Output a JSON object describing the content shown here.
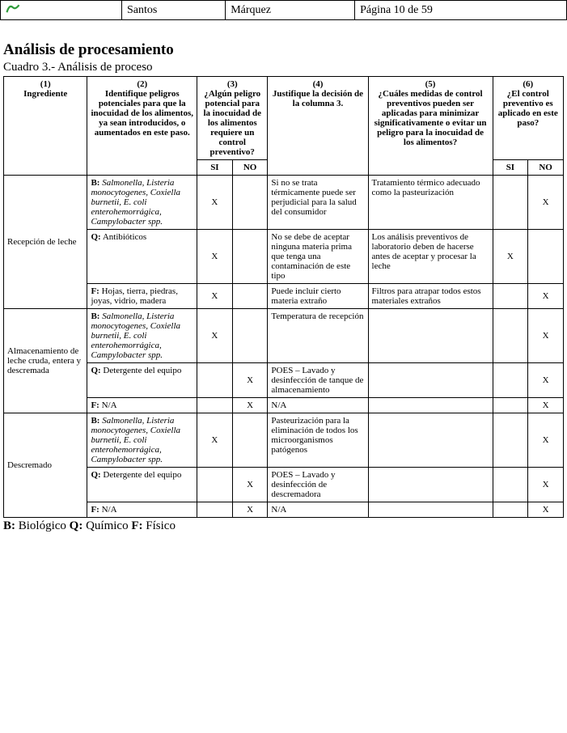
{
  "topbar": {
    "name1": "Santos",
    "name2": "Márquez",
    "page": "Página 10 de 59"
  },
  "section": {
    "title": "Análisis de procesamiento",
    "subtitle": "Cuadro 3.- Análisis de proceso"
  },
  "headers": {
    "c1_num": "(1)",
    "c1": "Ingrediente",
    "c2_num": "(2)",
    "c2": "Identifique peligros potenciales para que la inocuidad de los alimentos, ya sean introducidos, o aumentados en este paso.",
    "c3_num": "(3)",
    "c3": "¿Algún peligro potencial para la inocuidad de los alimentos requiere un control preventivo?",
    "c4_num": "(4)",
    "c4": "Justifique la decisión de la columna 3.",
    "c5_num": "(5)",
    "c5": "¿Cuáles medidas de control preventivos pueden ser aplicadas para minimizar significativamente o evitar un peligro para la inocuidad de los alimentos?",
    "c6_num": "(6)",
    "c6": "¿El control preventivo es aplicado en este paso?",
    "si": "SI",
    "no": "NO"
  },
  "rows": [
    {
      "ingredient": "Recepción de leche",
      "items": [
        {
          "hazard_prefix": "B:",
          "hazard_body": "Salmonella, Listeria monocytogenes, Coxiella burnetii, E. coli enterohemorrágica, Campylobacter spp.",
          "si3": "X",
          "no3": "",
          "just": "Si no se trata térmicamente puede ser perjudicial para la salud del consumidor",
          "meas": "Tratamiento térmico adecuado como la pasteurización",
          "si6": "",
          "no6": "X"
        },
        {
          "hazard_prefix": "Q:",
          "hazard_body": "Antibióticos",
          "si3": "X",
          "no3": "",
          "just": "No se debe de aceptar ninguna materia prima que tenga una contaminación de este tipo",
          "meas": "Los análisis preventivos de laboratorio deben de hacerse antes de aceptar y procesar la leche",
          "si6": "X",
          "no6": ""
        },
        {
          "hazard_prefix": "F:",
          "hazard_body": "Hojas, tierra, piedras, joyas, vidrio, madera",
          "si3": "X",
          "no3": "",
          "just": "Puede incluir cierto materia extraño",
          "meas": "Filtros para atrapar todos estos materiales extraños",
          "si6": "",
          "no6": "X"
        }
      ]
    },
    {
      "ingredient": "Almacenamiento de leche cruda, entera y descremada",
      "items": [
        {
          "hazard_prefix": "B:",
          "hazard_body": "Salmonella, Listeria monocytogenes, Coxiella burnetii, E. coli enterohemorrágica, Campylobacter spp.",
          "si3": "X",
          "no3": "",
          "just": "Temperatura de recepción",
          "meas": "",
          "si6": "",
          "no6": "X"
        },
        {
          "hazard_prefix": "Q:",
          "hazard_body": "Detergente del equipo",
          "si3": "",
          "no3": "X",
          "just": "POES – Lavado y desinfección de tanque de almacenamiento",
          "meas": "",
          "si6": "",
          "no6": "X"
        },
        {
          "hazard_prefix": "F:",
          "hazard_body": "N/A",
          "si3": "",
          "no3": "X",
          "just": "N/A",
          "meas": "",
          "si6": "",
          "no6": "X"
        }
      ]
    },
    {
      "ingredient": "Descremado",
      "items": [
        {
          "hazard_prefix": "B:",
          "hazard_body": "Salmonella, Listeria monocytogenes, Coxiella burnetii, E. coli enterohemorrágica, Campylobacter spp.",
          "si3": "X",
          "no3": "",
          "just": "Pasteurización para la eliminación de todos los microorganismos patógenos",
          "meas": "",
          "si6": "",
          "no6": "X"
        },
        {
          "hazard_prefix": "Q:",
          "hazard_body": "Detergente del equipo",
          "si3": "",
          "no3": "X",
          "just": "POES – Lavado y desinfección de descremadora",
          "meas": "",
          "si6": "",
          "no6": "X"
        },
        {
          "hazard_prefix": "F:",
          "hazard_body": "N/A",
          "si3": "",
          "no3": "X",
          "just": "N/A",
          "meas": "",
          "si6": "",
          "no6": "X"
        }
      ]
    }
  ],
  "legend": {
    "b": "B:",
    "b_t": "Biológico",
    "q": "Q:",
    "q_t": "Químico",
    "f": "F:",
    "f_t": "Físico"
  }
}
